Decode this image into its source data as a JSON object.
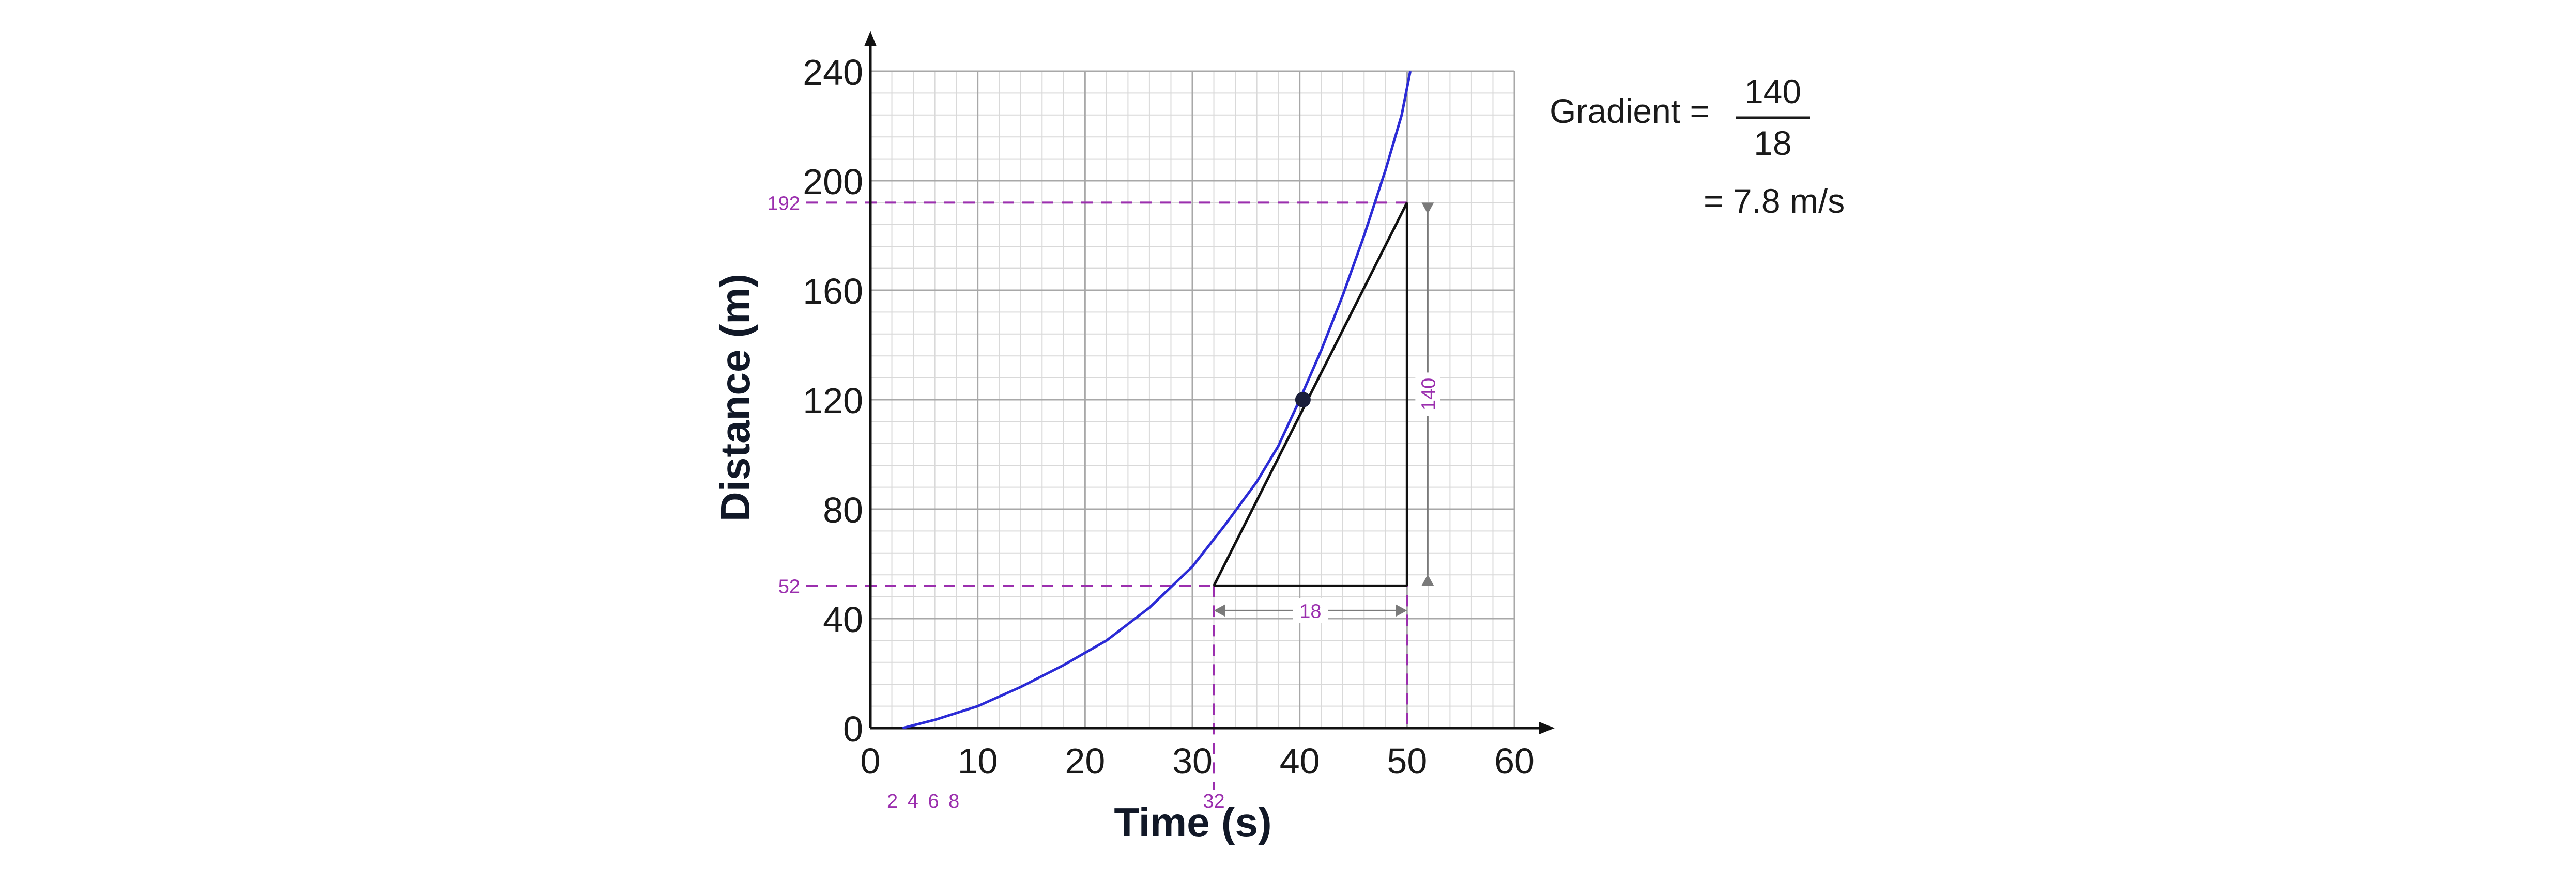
{
  "chart_data": {
    "type": "line",
    "xlabel": "Time (s)",
    "ylabel": "Distance (m)",
    "xlim": [
      0,
      60
    ],
    "ylim": [
      0,
      240
    ],
    "x_ticks": [
      0,
      10,
      20,
      30,
      40,
      50,
      60
    ],
    "y_ticks": [
      0,
      40,
      80,
      120,
      160,
      200,
      240
    ],
    "grid": true,
    "series": [
      {
        "x": [
          3,
          6,
          10,
          14,
          18,
          22,
          26,
          30,
          33,
          36,
          38,
          40,
          42,
          44,
          46,
          48,
          49.5,
          50.3
        ],
        "y": [
          0,
          3,
          8,
          15,
          23,
          32,
          44,
          59,
          74,
          90,
          103,
          120,
          138,
          158,
          180,
          204,
          224,
          240
        ],
        "color": "#2b2bd6"
      }
    ],
    "tangent_point": {
      "x": 40.3,
      "y": 120
    },
    "tangent_triangle": {
      "x_start": 32,
      "x_end": 50,
      "y_start": 52,
      "y_end": 192
    },
    "annotations": {
      "y_low": "52",
      "y_high": "192",
      "x_low": "32",
      "small_x_ticks": "2 4 6 8",
      "run": "18",
      "rise": "140"
    },
    "colors": {
      "curve": "#2b2bd6",
      "annotation": "#9b2fae",
      "grid_major": "#a8a8a8",
      "grid_minor": "#d9d9d9"
    }
  },
  "formula": {
    "label": "Gradient =",
    "numerator": "140",
    "denominator": "18",
    "result": "= 7.8 m/s"
  }
}
